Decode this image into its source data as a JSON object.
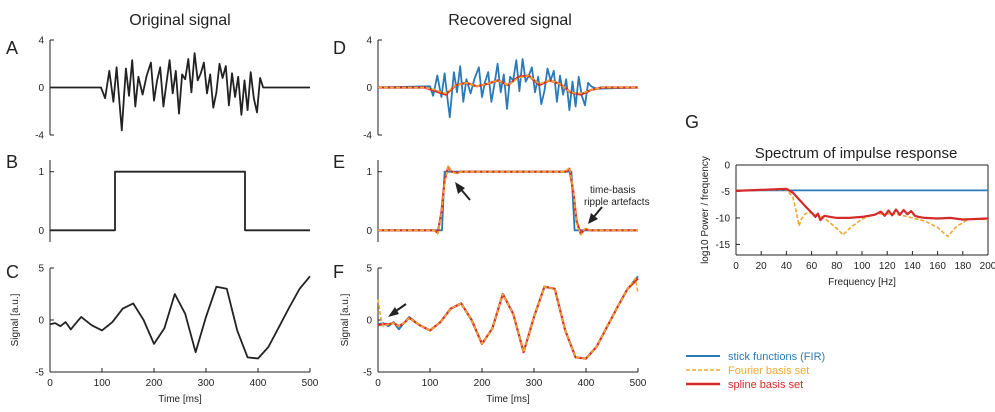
{
  "column_titles": {
    "original": "Original signal",
    "recovered": "Recovered signal"
  },
  "panel_letters": {
    "A": "A",
    "B": "B",
    "C": "C",
    "D": "D",
    "E": "E",
    "F": "F",
    "G": "G"
  },
  "annotations": {
    "time_basis_line1": "time-basis",
    "time_basis_line2": "ripple artefacts"
  },
  "colors": {
    "black": "#222222",
    "stick": "#2a7ab8",
    "fourier": "#f0a830",
    "spline": "#d42a2a"
  },
  "legend": {
    "stick": "stick functions (FIR)",
    "fourier": "Fourier basis set",
    "spline": "spline basis set"
  },
  "chart_data": [
    {
      "id": "A",
      "type": "line",
      "title": "Original signal",
      "xlim": [
        0,
        500
      ],
      "ylim": [
        -4,
        4
      ],
      "yticks": [
        "4",
        "0",
        "-4"
      ],
      "ytick_values": [
        4,
        0,
        -4
      ],
      "series": [
        {
          "color": "#222222",
          "x": [
            0,
            98,
            106,
            114,
            122,
            128,
            134,
            138,
            142,
            146,
            152,
            158,
            164,
            170,
            178,
            186,
            194,
            200,
            206,
            212,
            218,
            224,
            230,
            236,
            242,
            248,
            254,
            260,
            266,
            272,
            278,
            284,
            290,
            296,
            302,
            308,
            314,
            320,
            326,
            332,
            338,
            344,
            350,
            356,
            362,
            368,
            374,
            380,
            386,
            392,
            398,
            404,
            410,
            500
          ],
          "y": [
            0,
            0,
            -0.9,
            1.4,
            -1.2,
            1.7,
            -1.5,
            -3.6,
            -1.0,
            1.6,
            -0.7,
            2.3,
            -1.6,
            0.9,
            -0.6,
            1.0,
            2.1,
            -1.1,
            0.6,
            1.7,
            -1.6,
            0.4,
            2.3,
            -0.5,
            1.4,
            -2.2,
            1.1,
            0.7,
            2.4,
            -0.4,
            2.9,
            0.6,
            1.2,
            2.1,
            -0.5,
            1.1,
            -1.7,
            -0.4,
            2.0,
            0.8,
            1.8,
            -1.5,
            1.2,
            -0.8,
            0.9,
            -2.3,
            0.6,
            -1.9,
            1.3,
            -0.9,
            -2.1,
            0.8,
            0,
            0
          ]
        }
      ]
    },
    {
      "id": "B",
      "type": "line",
      "xlim": [
        0,
        500
      ],
      "ylim": [
        -0.2,
        1.2
      ],
      "yticks": [
        "1",
        "0"
      ],
      "ytick_values": [
        1,
        0
      ],
      "series": [
        {
          "color": "#222222",
          "x": [
            0,
            125,
            125,
            375,
            375,
            500
          ],
          "y": [
            0,
            0,
            1,
            1,
            0,
            0
          ]
        }
      ]
    },
    {
      "id": "C",
      "type": "line",
      "xlim": [
        0,
        500
      ],
      "ylim": [
        -5,
        5
      ],
      "xlabel": "Time [ms]",
      "ylabel": "Signal [a.u.]",
      "yticks": [
        "5",
        "0",
        "-5"
      ],
      "ytick_values": [
        5,
        0,
        -5
      ],
      "xticks": [
        "0",
        "100",
        "200",
        "300",
        "400",
        "500"
      ],
      "xtick_values": [
        0,
        100,
        200,
        300,
        400,
        500
      ],
      "series": [
        {
          "color": "#222222",
          "x": [
            0,
            10,
            20,
            30,
            40,
            50,
            60,
            80,
            100,
            120,
            140,
            160,
            180,
            200,
            220,
            240,
            260,
            280,
            300,
            320,
            340,
            360,
            380,
            400,
            420,
            440,
            460,
            480,
            500
          ],
          "y": [
            -0.4,
            -0.3,
            -0.6,
            -0.2,
            -0.9,
            -0.3,
            0.3,
            -0.5,
            -1.0,
            -0.2,
            1.1,
            1.6,
            0.0,
            -2.3,
            -0.8,
            2.5,
            0.6,
            -3.1,
            0.3,
            3.2,
            3.0,
            -1.0,
            -3.6,
            -3.7,
            -2.6,
            -0.7,
            1.2,
            3.0,
            4.2
          ]
        }
      ]
    },
    {
      "id": "D",
      "type": "line",
      "xlim": [
        0,
        500
      ],
      "ylim": [
        -4,
        4
      ],
      "yticks": [
        "4",
        "0",
        "-4"
      ],
      "ytick_values": [
        4,
        0,
        -4
      ],
      "series": [
        {
          "color": "#2a7ab8",
          "x": [
            0,
            100,
            106,
            114,
            122,
            128,
            134,
            138,
            142,
            146,
            152,
            158,
            164,
            170,
            178,
            186,
            194,
            200,
            206,
            212,
            218,
            224,
            230,
            236,
            242,
            248,
            254,
            260,
            266,
            272,
            278,
            284,
            290,
            296,
            302,
            308,
            314,
            320,
            326,
            332,
            338,
            344,
            350,
            356,
            362,
            368,
            374,
            380,
            386,
            392,
            398,
            404,
            410,
            420,
            500
          ],
          "y": [
            0,
            0.1,
            -0.7,
            1.0,
            -0.8,
            1.2,
            -1.1,
            -2.5,
            -0.6,
            1.3,
            -0.4,
            1.8,
            -1.2,
            0.7,
            -0.5,
            0.8,
            1.7,
            -0.8,
            0.5,
            1.3,
            -1.2,
            0.3,
            2.0,
            -0.4,
            1.1,
            -1.8,
            0.9,
            0.6,
            2.3,
            -0.3,
            2.4,
            0.5,
            1.0,
            1.7,
            -0.4,
            0.9,
            -1.4,
            -0.3,
            1.6,
            0.6,
            1.4,
            -1.2,
            1.0,
            -0.6,
            0.7,
            -1.9,
            0.5,
            -1.6,
            0.9,
            -0.7,
            -1.5,
            0.4,
            0.1,
            -0.1,
            0
          ]
        },
        {
          "color": "#d42a2a",
          "x": [
            0,
            90,
            110,
            130,
            150,
            170,
            190,
            210,
            230,
            250,
            270,
            290,
            310,
            330,
            350,
            370,
            390,
            410,
            430,
            500
          ],
          "y": [
            0,
            0,
            -0.3,
            -0.6,
            0.2,
            0.4,
            0.1,
            0.3,
            0.6,
            0.2,
            0.9,
            1.0,
            0.2,
            0.6,
            0.3,
            -0.4,
            -0.6,
            -0.2,
            0,
            0
          ]
        },
        {
          "color": "#f0a830",
          "dashed": true,
          "x": [
            0,
            90,
            110,
            130,
            150,
            170,
            190,
            210,
            230,
            250,
            270,
            290,
            310,
            330,
            350,
            370,
            390,
            410,
            430,
            500
          ],
          "y": [
            0,
            0,
            -0.2,
            -0.5,
            0.2,
            0.4,
            0.1,
            0.3,
            0.6,
            0.2,
            0.8,
            1.0,
            0.3,
            0.6,
            0.3,
            -0.4,
            -0.5,
            -0.2,
            0,
            0
          ]
        }
      ]
    },
    {
      "id": "E",
      "type": "line",
      "xlim": [
        0,
        500
      ],
      "ylim": [
        -0.2,
        1.2
      ],
      "yticks": [
        "1",
        "0"
      ],
      "ytick_values": [
        1,
        0
      ],
      "series": [
        {
          "color": "#2a7ab8",
          "x": [
            0,
            123,
            128,
            372,
            378,
            500
          ],
          "y": [
            0,
            0,
            1,
            1,
            0,
            0
          ]
        },
        {
          "color": "#d42a2a",
          "x": [
            0,
            108,
            115,
            122,
            128,
            135,
            142,
            150,
            160,
            360,
            368,
            375,
            382,
            390,
            398,
            408,
            500
          ],
          "y": [
            0,
            0,
            -0.04,
            0.3,
            0.85,
            1.08,
            1.0,
            0.98,
            1.0,
            1.0,
            1.05,
            0.7,
            0.15,
            -0.06,
            0.02,
            0,
            0
          ]
        },
        {
          "color": "#f0a830",
          "dashed": true,
          "x": [
            0,
            108,
            115,
            122,
            128,
            135,
            142,
            150,
            160,
            360,
            368,
            375,
            382,
            390,
            398,
            408,
            500
          ],
          "y": [
            0,
            0,
            -0.06,
            0.28,
            0.8,
            1.1,
            1.0,
            0.97,
            1.0,
            1.0,
            1.07,
            0.72,
            0.12,
            -0.08,
            0.03,
            0,
            0
          ]
        }
      ]
    },
    {
      "id": "F",
      "type": "line",
      "xlim": [
        0,
        500
      ],
      "ylim": [
        -5,
        5
      ],
      "xlabel": "Time [ms]",
      "ylabel": "Signal [a.u.]",
      "yticks": [
        "5",
        "0",
        "-5"
      ],
      "ytick_values": [
        5,
        0,
        -5
      ],
      "xticks": [
        "0",
        "100",
        "200",
        "300",
        "400",
        "500"
      ],
      "xtick_values": [
        0,
        100,
        200,
        300,
        400,
        500
      ],
      "series": [
        {
          "color": "#2a7ab8",
          "x": [
            0,
            10,
            20,
            30,
            40,
            50,
            60,
            80,
            100,
            120,
            140,
            160,
            180,
            200,
            220,
            240,
            260,
            280,
            300,
            320,
            340,
            360,
            380,
            400,
            420,
            440,
            460,
            480,
            500
          ],
          "y": [
            -0.4,
            -0.3,
            -0.6,
            -0.2,
            -0.9,
            -0.3,
            0.3,
            -0.5,
            -1.0,
            -0.2,
            1.1,
            1.6,
            0.0,
            -2.3,
            -0.8,
            2.5,
            0.6,
            -3.1,
            0.3,
            3.2,
            3.0,
            -1.0,
            -3.6,
            -3.7,
            -2.6,
            -0.7,
            1.2,
            3.0,
            4.2
          ]
        },
        {
          "color": "#d42a2a",
          "x": [
            0,
            10,
            20,
            30,
            40,
            50,
            60,
            80,
            100,
            120,
            140,
            160,
            180,
            200,
            220,
            240,
            260,
            280,
            300,
            320,
            340,
            360,
            380,
            400,
            420,
            440,
            460,
            480,
            500
          ],
          "y": [
            -0.5,
            -0.4,
            -0.4,
            -0.3,
            -0.6,
            -0.3,
            0.2,
            -0.5,
            -1.0,
            -0.2,
            1.1,
            1.6,
            0.0,
            -2.3,
            -0.8,
            2.5,
            0.6,
            -3.1,
            0.3,
            3.2,
            3.0,
            -1.0,
            -3.6,
            -3.7,
            -2.6,
            -0.7,
            1.2,
            3.0,
            4.0
          ]
        },
        {
          "color": "#f0a830",
          "dashed": true,
          "x": [
            0,
            5,
            10,
            20,
            30,
            40,
            50,
            60,
            80,
            100,
            120,
            140,
            160,
            180,
            200,
            220,
            240,
            260,
            280,
            300,
            320,
            340,
            360,
            380,
            400,
            420,
            440,
            460,
            480,
            495,
            500
          ],
          "y": [
            2.0,
            0.3,
            -0.6,
            -0.4,
            -0.3,
            -0.6,
            -0.3,
            0.2,
            -0.5,
            -1.0,
            -0.2,
            1.1,
            1.6,
            0.0,
            -2.3,
            -0.8,
            2.5,
            0.6,
            -3.1,
            0.3,
            3.2,
            3.0,
            -1.0,
            -3.6,
            -3.7,
            -2.6,
            -0.7,
            1.2,
            3.0,
            4.0,
            2.6
          ]
        }
      ]
    },
    {
      "id": "G",
      "type": "line",
      "title": "Spectrum of impulse response",
      "xlabel": "Frequency [Hz]",
      "ylabel": "log10 Power / frequency",
      "xlim": [
        0,
        200
      ],
      "ylim": [
        -17,
        0
      ],
      "yticks": [
        "0",
        "-5",
        "-10",
        "-15"
      ],
      "ytick_values": [
        0,
        -5,
        -10,
        -15
      ],
      "xticks": [
        "0",
        "20",
        "40",
        "60",
        "80",
        "100",
        "120",
        "140",
        "160",
        "180",
        "200"
      ],
      "xtick_values": [
        0,
        20,
        40,
        60,
        80,
        100,
        120,
        140,
        160,
        180,
        200
      ],
      "series": [
        {
          "name": "stick functions (FIR)",
          "color": "#2a7ab8",
          "x": [
            0,
            200
          ],
          "y": [
            -4.8,
            -4.8
          ]
        },
        {
          "name": "Fourier basis set",
          "color": "#f0a830",
          "dashed": true,
          "x": [
            0,
            40,
            45,
            48,
            50,
            52,
            55,
            60,
            70,
            80,
            85,
            90,
            100,
            110,
            120,
            130,
            140,
            150,
            160,
            168,
            175,
            185,
            200
          ],
          "y": [
            -4.9,
            -4.6,
            -6.0,
            -9.0,
            -11.5,
            -10.2,
            -9.2,
            -9.0,
            -10.0,
            -12.0,
            -13.2,
            -12.0,
            -10.2,
            -9.3,
            -9.2,
            -9.4,
            -10.0,
            -10.6,
            -11.8,
            -13.5,
            -11.6,
            -10.2,
            -10.3
          ]
        },
        {
          "name": "spline basis set",
          "color": "#d42a2a",
          "x": [
            0,
            40,
            45,
            50,
            55,
            60,
            63,
            65,
            67,
            70,
            75,
            80,
            90,
            100,
            110,
            115,
            118,
            121,
            124,
            127,
            130,
            133,
            136,
            139,
            142,
            145,
            150,
            160,
            170,
            180,
            190,
            200
          ],
          "y": [
            -4.9,
            -4.5,
            -5.2,
            -6.5,
            -7.8,
            -9.0,
            -9.8,
            -9.2,
            -10.4,
            -9.6,
            -9.8,
            -10.0,
            -10.0,
            -9.8,
            -9.4,
            -8.8,
            -9.6,
            -8.6,
            -9.5,
            -8.4,
            -9.4,
            -8.5,
            -9.3,
            -8.7,
            -9.6,
            -9.8,
            -10.0,
            -10.1,
            -10.0,
            -10.3,
            -10.2,
            -10.1
          ]
        }
      ]
    }
  ]
}
